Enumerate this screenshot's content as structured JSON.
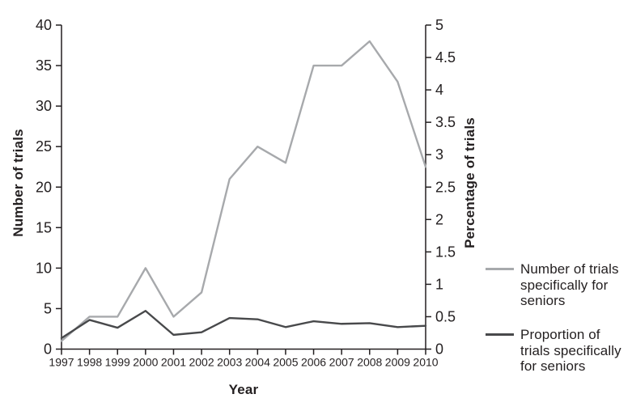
{
  "chart_data": {
    "type": "line",
    "title": "",
    "xlabel": "Year",
    "ylabel_left": "Number of trials",
    "ylabel_right": "Percentage of trials",
    "categories": [
      "1997",
      "1998",
      "1999",
      "2000",
      "2001",
      "2002",
      "2003",
      "2004",
      "2005",
      "2006",
      "2007",
      "2008",
      "2009",
      "2010"
    ],
    "series": [
      {
        "name": "Number of trials specifically for seniors",
        "axis": "left",
        "color": "#a7a9ac",
        "values": [
          1,
          4,
          4,
          10,
          4,
          7,
          21,
          25,
          23,
          35,
          35,
          38,
          33,
          22.5
        ]
      },
      {
        "name": "Proportion of trials specifically for seniors",
        "axis": "right",
        "color": "#48494b",
        "values": [
          0.17,
          0.45,
          0.33,
          0.59,
          0.22,
          0.26,
          0.48,
          0.46,
          0.34,
          0.43,
          0.39,
          0.4,
          0.34,
          0.36
        ]
      }
    ],
    "left_axis": {
      "min": 0,
      "max": 40,
      "ticks": [
        0,
        5,
        10,
        15,
        20,
        25,
        30,
        35,
        40
      ]
    },
    "right_axis": {
      "min": 0,
      "max": 5,
      "ticks": [
        0,
        0.5,
        1,
        1.5,
        2,
        2.5,
        3,
        3.5,
        4,
        4.5,
        5
      ]
    },
    "grid": false,
    "legend_position": "right"
  },
  "labels": {
    "xlabel": "Year",
    "ylabel_left": "Number of trials",
    "ylabel_right": "Percentage of trials"
  },
  "legend": {
    "item1": "Number of trials\nspecifically for\nseniors",
    "item2": "Proportion of\ntrials specifically\nfor seniors"
  },
  "colors": {
    "series1": "#a7a9ac",
    "series2": "#48494b",
    "axis": "#231f20",
    "text": "#231f20",
    "background": "#ffffff"
  }
}
